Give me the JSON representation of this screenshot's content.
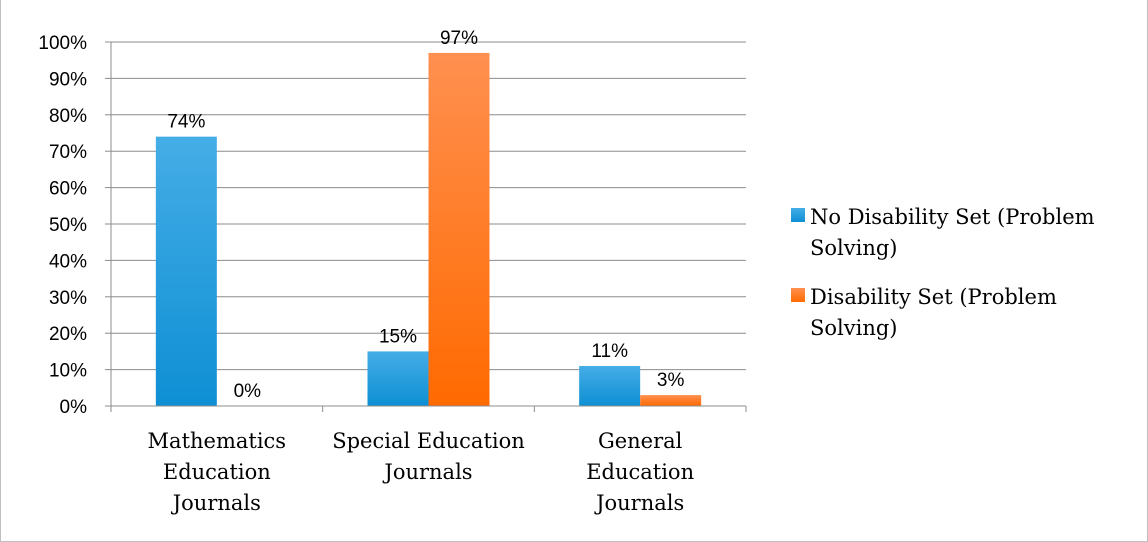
{
  "chart_data": {
    "type": "bar",
    "categories": [
      [
        "Mathematics",
        "Education",
        "Journals"
      ],
      [
        "Special Education",
        "Journals"
      ],
      [
        "General",
        "Education",
        "Journals"
      ]
    ],
    "series": [
      {
        "name": [
          "No Disability Set (Problem",
          "Solving)"
        ],
        "values": [
          74,
          15,
          11
        ],
        "labels": [
          "74%",
          "15%",
          "11%"
        ],
        "color": "#0e8fd4",
        "color_light": "#45ade6"
      },
      {
        "name": [
          "Disability Set (Problem",
          "Solving)"
        ],
        "values": [
          0,
          97,
          3
        ],
        "labels": [
          "0%",
          "97%",
          "3%"
        ],
        "color": "#ff6a00",
        "color_light": "#ff9050"
      }
    ],
    "y_ticks": [
      "0%",
      "10%",
      "20%",
      "30%",
      "40%",
      "50%",
      "60%",
      "70%",
      "80%",
      "90%",
      "100%"
    ],
    "ylim": [
      0,
      100
    ],
    "grid": true,
    "legend_position": "right"
  }
}
